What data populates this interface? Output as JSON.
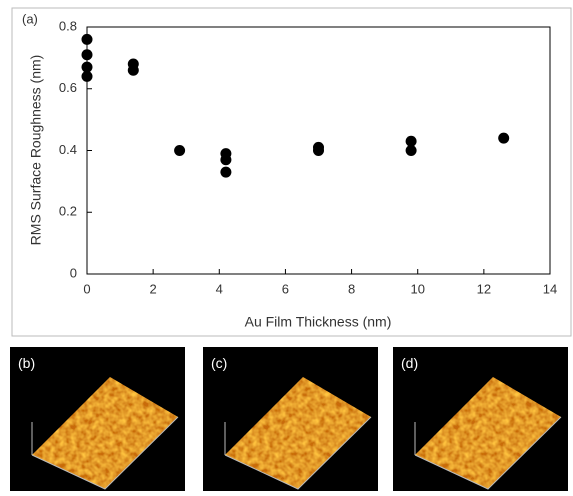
{
  "chart_data": {
    "type": "scatter",
    "panel_label": "(a)",
    "xlabel": "Au Film Thickness (nm)",
    "ylabel": "RMS Surface Roughness (nm)",
    "xlim": [
      0,
      14
    ],
    "xticks": [
      0,
      2,
      4,
      6,
      8,
      10,
      12,
      14
    ],
    "ylim": [
      0,
      0.8
    ],
    "yticks": [
      0,
      0.2,
      0.4,
      0.6,
      0.8
    ],
    "series": [
      {
        "color": "#000000",
        "x": [
          0,
          0,
          0,
          0,
          1.4,
          1.4,
          2.8,
          4.2,
          4.2,
          4.2,
          7,
          7,
          9.8,
          9.8,
          12.6
        ],
        "values": [
          0.76,
          0.71,
          0.67,
          0.64,
          0.68,
          0.66,
          0.4,
          0.39,
          0.37,
          0.33,
          0.41,
          0.4,
          0.43,
          0.4,
          0.44
        ]
      }
    ]
  },
  "images": [
    {
      "label": "(b)"
    },
    {
      "label": "(c)"
    },
    {
      "label": "(d)"
    }
  ]
}
